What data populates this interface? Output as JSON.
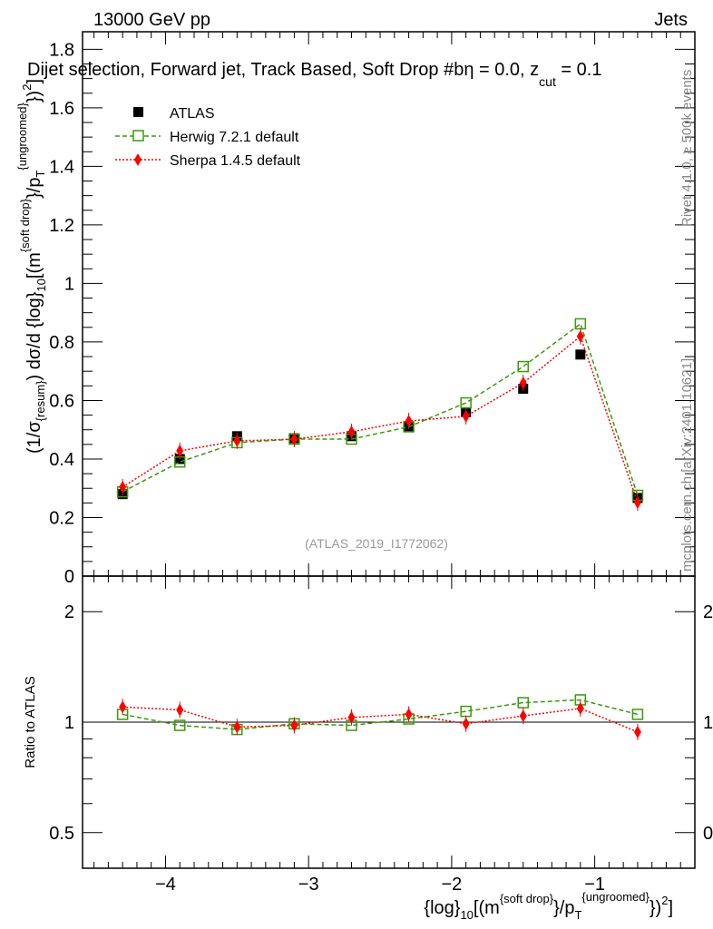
{
  "header": {
    "left": "13000 GeV pp",
    "right": "Jets"
  },
  "side_texts": {
    "top": "Rivet 4.1.0, ≥ 500k events",
    "bottom": "mcplots.cern.ch [arXiv:2401.10621]"
  },
  "chart_data": [
    {
      "type": "line",
      "title": "Dijet selection, Forward jet, Track Based, Soft Drop #bη = 0.0, z_cut = 0.1",
      "title_main": "Dijet selection, Forward jet, Track Based, Soft Drop #b",
      "title_eta": "η = 0.0, z",
      "title_sub": "cut",
      "title_end": " = 0.1",
      "ylabel": "(1/σ_{resum}) dσ/d {log}_10[(m^{soft drop}/p_T^{ungroomed})^2]",
      "ylabel_parts": [
        "(1/σ",
        "{resum}",
        ") dσ/d {log}",
        "10",
        "[(m",
        "{soft drop}",
        "}/p",
        "T",
        "{ungroomed}",
        "})",
        "2",
        "]"
      ],
      "watermark": "(ATLAS_2019_I1772062)",
      "xlim": [
        -4.58,
        -0.3
      ],
      "ylim": [
        0,
        1.86
      ],
      "yticks": [
        "0",
        "0.2",
        "0.4",
        "0.6",
        "0.8",
        "1",
        "1.2",
        "1.4",
        "1.6",
        "1.8"
      ],
      "x": [
        -4.3,
        -3.9,
        -3.5,
        -3.1,
        -2.7,
        -2.3,
        -1.9,
        -1.5,
        -1.1,
        -0.7
      ],
      "series": [
        {
          "name": "ATLAS",
          "color": "#000000",
          "values": [
            0.28,
            0.4,
            0.478,
            0.471,
            0.478,
            0.51,
            0.56,
            0.64,
            0.757,
            0.267
          ]
        },
        {
          "name": "Herwig 7.2.1 default",
          "color": "#3a9a0a",
          "values": [
            0.288,
            0.39,
            0.456,
            0.468,
            0.468,
            0.51,
            0.592,
            0.716,
            0.862,
            0.276
          ]
        },
        {
          "name": "Sherpa 1.4.5 default",
          "color": "#ff0000",
          "values": [
            0.304,
            0.428,
            0.462,
            0.468,
            0.493,
            0.53,
            0.546,
            0.66,
            0.819,
            0.251
          ]
        }
      ],
      "legend": "top-left"
    },
    {
      "type": "line",
      "ylabel": "Ratio to ATLAS",
      "xlabel_parts": [
        "{log}",
        "10",
        "[(m",
        "{soft drop}",
        "}/p",
        "T",
        "{ungroomed}",
        "})",
        "2",
        "]"
      ],
      "xlabel": "{log}_10[(m^{soft drop}/p_T^{ungroomed})^2]",
      "yscale": "log",
      "ylim": [
        0.4,
        2.5
      ],
      "yticks": [
        "0.5",
        "1",
        "2"
      ],
      "xticks": [
        "−4",
        "−3",
        "−2",
        "−1"
      ],
      "x": [
        -4.3,
        -3.9,
        -3.5,
        -3.1,
        -2.7,
        -2.3,
        -1.9,
        -1.5,
        -1.1,
        -0.7
      ],
      "series": [
        {
          "name": "Herwig 7.2.1 default",
          "color": "#3a9a0a",
          "values": [
            1.05,
            0.98,
            0.955,
            0.99,
            0.98,
            1.02,
            1.07,
            1.13,
            1.15,
            1.05
          ]
        },
        {
          "name": "Sherpa 1.4.5 default",
          "color": "#ff0000",
          "values": [
            1.1,
            1.08,
            0.97,
            0.98,
            1.03,
            1.05,
            0.99,
            1.04,
            1.09,
            0.94
          ]
        }
      ]
    }
  ]
}
